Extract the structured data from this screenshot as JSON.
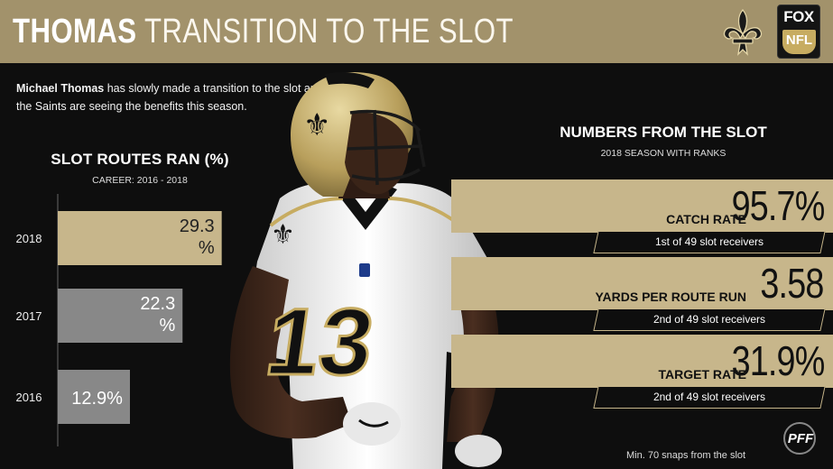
{
  "header": {
    "title_bold": "THOMAS",
    "title_light": "TRANSITION TO THE SLOT",
    "network_top": "FOX",
    "network_bottom": "NFL"
  },
  "intro": {
    "name": "Michael Thomas",
    "rest": " has slowly made a transition to the slot and the Saints are seeing the benefits this season."
  },
  "chart_data": {
    "type": "bar",
    "title": "SLOT ROUTES RAN (%)",
    "subtitle": "CAREER: 2016 - 2018",
    "categories": [
      "2018",
      "2017",
      "2016"
    ],
    "values": [
      29.3,
      22.3,
      12.9
    ],
    "value_labels": [
      [
        "29.3",
        "%"
      ],
      [
        "22.3",
        "%"
      ],
      [
        "12.9%"
      ]
    ],
    "colors": [
      "#c7b68b",
      "#888888",
      "#888888"
    ]
  },
  "stats": {
    "title": "NUMBERS FROM THE SLOT",
    "subtitle": "2018 SEASON WITH RANKS",
    "items": [
      {
        "label": "CATCH RATE",
        "value": "95.7%",
        "rank": "1st of 49 slot receivers"
      },
      {
        "label": "YARDS PER ROUTE RUN",
        "value": "3.58",
        "rank": "2nd of 49 slot receivers"
      },
      {
        "label": "TARGET RATE",
        "value": "31.9%",
        "rank": "2nd of 49 slot receivers"
      }
    ]
  },
  "footnote": "Min. 70 snaps from the slot",
  "source_logo": "PFF",
  "player": {
    "jersey_number": "13"
  },
  "colors": {
    "gold": "#a2926b",
    "band": "#c7b68b",
    "gray_bar": "#888888",
    "background": "#0e0e0e"
  }
}
